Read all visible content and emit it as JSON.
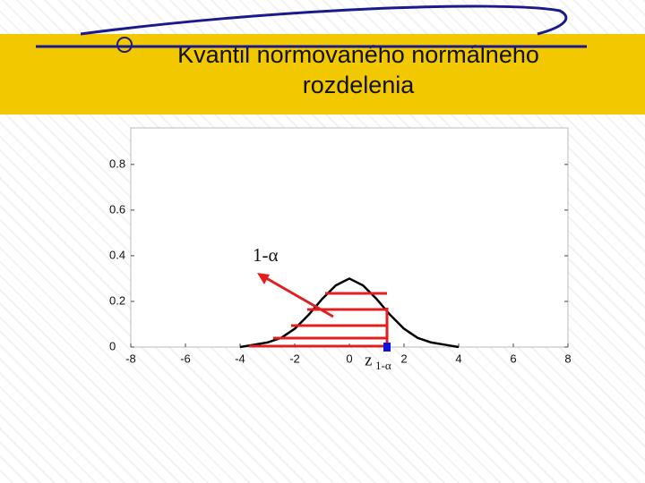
{
  "chart_data": {
    "type": "line",
    "title": "Kvantil normovaného normálneho rozdelenia",
    "x": [
      -4,
      -3.5,
      -3,
      -2.5,
      -2,
      -1.5,
      -1,
      -0.5,
      0,
      0.5,
      1,
      1.5,
      2,
      2.5,
      3,
      3.5,
      4
    ],
    "series": [
      {
        "color": "#000000",
        "values": [
          0,
          0.01,
          0.02,
          0.04,
          0.08,
          0.14,
          0.21,
          0.27,
          0.3,
          0.27,
          0.21,
          0.14,
          0.08,
          0.04,
          0.02,
          0.01,
          0
        ]
      }
    ],
    "xlim": [
      -8,
      8
    ],
    "ylim": [
      0,
      0.96
    ],
    "xticks": [
      -8,
      -6,
      -4,
      -2,
      0,
      2,
      4,
      6,
      8
    ],
    "yticks": [
      0,
      0.2,
      0.4,
      0.6,
      0.8
    ],
    "annotations": [
      {
        "text": "1-α"
      },
      {
        "text": "z",
        "subscript": "1-α"
      }
    ]
  }
}
